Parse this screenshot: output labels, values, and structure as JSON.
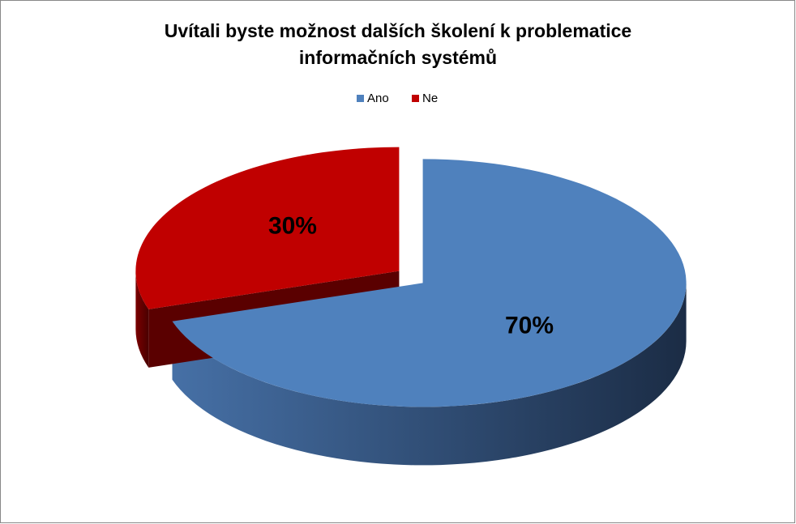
{
  "chart_data": {
    "type": "pie",
    "title": "Uvítali byste možnost dalších školení k problematice informačních systémů",
    "categories": [
      "Ano",
      "Ne"
    ],
    "values": [
      70,
      30
    ],
    "value_labels": [
      "70%",
      "30%"
    ],
    "colors": [
      "#4f81bd",
      "#c00000"
    ],
    "legend": "top"
  }
}
